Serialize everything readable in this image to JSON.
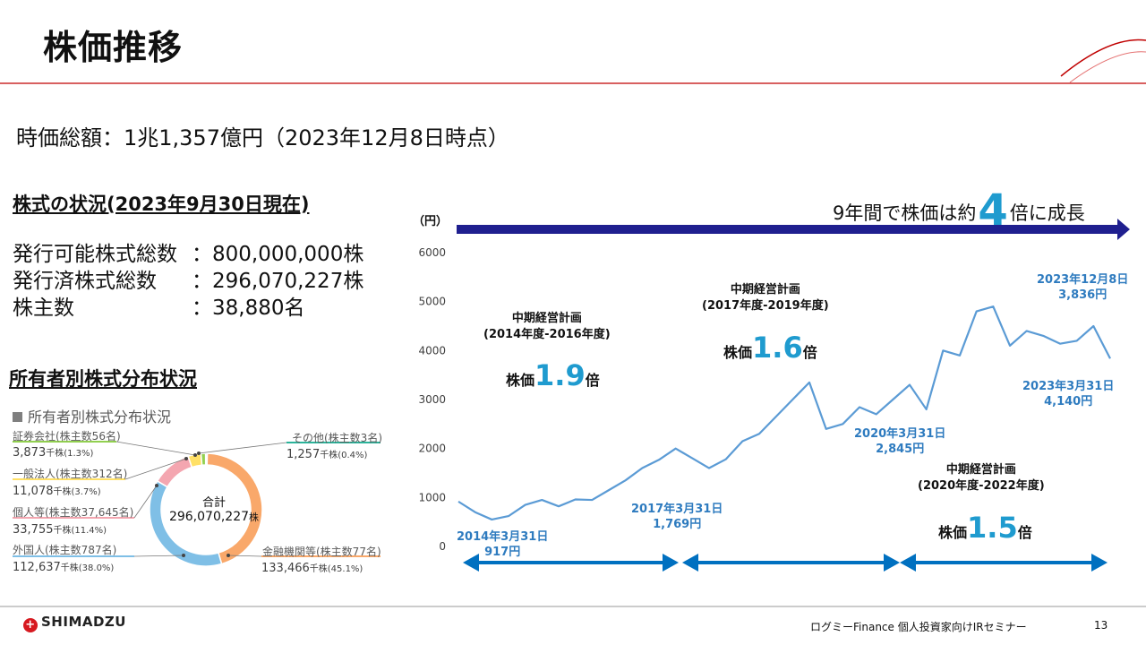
{
  "slide": {
    "title": "株価推移",
    "market_cap": "時価総額：1兆1,357億円（2023年12月8日時点）",
    "page_number": "13",
    "footer_text": "ログミーFinance 個人投資家向けIRセミナー",
    "company_logo": "SHIMADZU"
  },
  "shares": {
    "heading": "株式の状況(2023年9月30日現在)",
    "rows": [
      {
        "label": "発行可能株式総数",
        "value": "：800,000,000株"
      },
      {
        "label": "発行済株式総数",
        "value": "：296,070,227株"
      },
      {
        "label": "株主数",
        "value": "：38,880名"
      }
    ]
  },
  "ownership": {
    "heading": "所有者別株式分布状況",
    "chart_title": "所有者別株式分布状況",
    "center_label": "合計",
    "center_value": "296,070,227",
    "center_unit": "株",
    "segments": [
      {
        "label": "証券会社(株主数56名)",
        "value": "3,873",
        "unit": "千株",
        "pct": "(1.3%)",
        "color": "#92d050"
      },
      {
        "label": "一般法人(株主数312名)",
        "value": "11,078",
        "unit": "千株",
        "pct": "(3.7%)",
        "color": "#ffe066"
      },
      {
        "label": "個人等(株主数37,645名)",
        "value": "33,755",
        "unit": "千株",
        "pct": "(11.4%)",
        "color": "#f4a6b0"
      },
      {
        "label": "外国人(株主数787名)",
        "value": "112,637",
        "unit": "千株",
        "pct": "(38.0%)",
        "color": "#7fbfe6"
      },
      {
        "label": "金融機関等(株主数77名)",
        "value": "133,466",
        "unit": "千株",
        "pct": "(45.1%)",
        "color": "#f9a86a"
      },
      {
        "label": "その他(株主数3名)",
        "value": "1,257",
        "unit": "千株",
        "pct": "(0.4%)",
        "color": "#2bb39a"
      }
    ]
  },
  "banner": {
    "prefix": "9年間で株価は約",
    "big": "4",
    "suffix": "倍に成長"
  },
  "chart_data": {
    "type": "line",
    "y_unit_label": "（円）",
    "ylim": [
      0,
      6000
    ],
    "yticks": [
      "0",
      "1000",
      "2000",
      "3000",
      "4000",
      "5000",
      "6000"
    ],
    "x": [
      "2014-03",
      "2014-06",
      "2014-09",
      "2014-12",
      "2015-03",
      "2015-06",
      "2015-09",
      "2015-12",
      "2016-03",
      "2016-06",
      "2016-09",
      "2016-12",
      "2017-03",
      "2017-06",
      "2017-09",
      "2017-12",
      "2018-03",
      "2018-06",
      "2018-09",
      "2018-12",
      "2019-03",
      "2019-06",
      "2019-09",
      "2019-12",
      "2020-03",
      "2020-06",
      "2020-09",
      "2020-12",
      "2021-03",
      "2021-06",
      "2021-09",
      "2021-12",
      "2022-03",
      "2022-06",
      "2022-09",
      "2022-12",
      "2023-03",
      "2023-06",
      "2023-09",
      "2023-12"
    ],
    "values": [
      917,
      700,
      550,
      620,
      850,
      950,
      820,
      960,
      950,
      1150,
      1350,
      1600,
      1769,
      2000,
      1800,
      1600,
      1780,
      2150,
      2300,
      2650,
      3000,
      3350,
      2400,
      2500,
      2845,
      2700,
      3000,
      3300,
      2800,
      4000,
      3900,
      4800,
      4900,
      4100,
      4400,
      4300,
      4140,
      4200,
      4500,
      3836
    ],
    "annotations": [
      {
        "text_date": "2014年3月31日",
        "text_price": "917円"
      },
      {
        "text_date": "2017年3月31日",
        "text_price": "1,769円"
      },
      {
        "text_date": "2020年3月31日",
        "text_price": "2,845円"
      },
      {
        "text_date": "2023年3月31日",
        "text_price": "4,140円"
      },
      {
        "text_date": "2023年12月8日",
        "text_price": "3,836円"
      }
    ],
    "plans": [
      {
        "name": "中期経営計画",
        "period": "(2014年度-2016年度)",
        "mult_prefix": "株価",
        "mult": "1.9",
        "mult_suffix": "倍"
      },
      {
        "name": "中期経営計画",
        "period": "(2017年度-2019年度)",
        "mult_prefix": "株価",
        "mult": "1.6",
        "mult_suffix": "倍"
      },
      {
        "name": "中期経営計画",
        "period": "(2020年度-2022年度)",
        "mult_prefix": "株価",
        "mult": "1.5",
        "mult_suffix": "倍"
      }
    ],
    "line_color": "#5b9bd5",
    "arrow_color": "#0070c0",
    "banner_arrow_color": "#1f1f8f"
  }
}
